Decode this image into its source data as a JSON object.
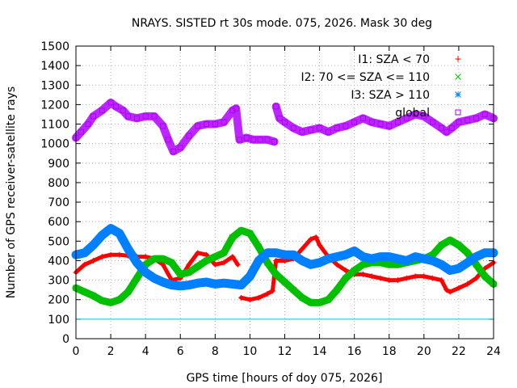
{
  "chart_data": {
    "type": "scatter",
    "title": "NRAYS. SISTED rt 30s mode. 075, 2026. Mask 30 deg",
    "xlabel": "GPS time [hours of doy 075, 2026]",
    "ylabel": "Number of GPS receiver-satellite rays",
    "xlim": [
      0,
      24
    ],
    "ylim": [
      0,
      1500
    ],
    "x_ticks": [
      0,
      2,
      4,
      6,
      8,
      10,
      12,
      14,
      16,
      18,
      20,
      22,
      24
    ],
    "y_ticks": [
      0,
      100,
      200,
      300,
      400,
      500,
      600,
      700,
      800,
      900,
      1000,
      1100,
      1200,
      1300,
      1400,
      1500
    ],
    "grid": true,
    "legend_position": "top-right",
    "threshold_line": {
      "y": 100,
      "color": "#00c0e0"
    },
    "series": [
      {
        "name": "I1: SZA < 70",
        "marker": "+",
        "color": "#ff0000",
        "x": [
          0,
          0.5,
          1,
          1.5,
          2,
          2.5,
          3,
          3.5,
          4,
          4.5,
          5,
          5.5,
          6,
          6.5,
          7,
          7.5,
          8,
          8.5,
          9,
          9.3,
          9.5,
          10,
          10.5,
          11,
          11.3,
          11.5,
          12,
          12.5,
          13,
          13.5,
          13.8,
          14,
          14.5,
          15,
          15.5,
          16,
          16.5,
          17,
          17.5,
          18,
          18.5,
          19,
          19.5,
          20,
          20.5,
          21,
          21.3,
          21.5,
          22,
          22.5,
          23,
          23.5,
          24
        ],
        "y": [
          340,
          380,
          400,
          420,
          430,
          430,
          425,
          420,
          420,
          410,
          380,
          300,
          310,
          380,
          440,
          430,
          380,
          390,
          420,
          380,
          210,
          200,
          210,
          230,
          245,
          400,
          400,
          410,
          460,
          510,
          520,
          480,
          420,
          380,
          350,
          330,
          330,
          320,
          310,
          300,
          300,
          310,
          320,
          320,
          310,
          300,
          250,
          240,
          260,
          280,
          310,
          360,
          390
        ]
      },
      {
        "name": "I2: 70 <= SZA <= 110",
        "marker": "x",
        "color": "#00c000",
        "x": [
          0,
          0.5,
          1,
          1.5,
          2,
          2.5,
          3,
          3.5,
          4,
          4.5,
          5,
          5.5,
          6,
          6.5,
          7,
          7.5,
          8,
          8.5,
          9,
          9.5,
          10,
          10.5,
          11,
          11.5,
          12,
          12.5,
          13,
          13.5,
          14,
          14.5,
          15,
          15.5,
          16,
          16.5,
          17,
          17.5,
          18,
          18.5,
          19,
          19.5,
          20,
          20.5,
          21,
          21.5,
          22,
          22.5,
          23,
          23.5,
          24
        ],
        "y": [
          260,
          240,
          220,
          195,
          185,
          200,
          240,
          310,
          380,
          410,
          410,
          390,
          330,
          340,
          370,
          400,
          420,
          440,
          520,
          555,
          540,
          470,
          390,
          330,
          290,
          250,
          210,
          185,
          185,
          200,
          250,
          310,
          350,
          380,
          390,
          390,
          380,
          380,
          390,
          400,
          410,
          430,
          480,
          505,
          480,
          440,
          380,
          320,
          280
        ]
      },
      {
        "name": "I3: SZA > 110",
        "marker": "*",
        "color": "#0080ff",
        "x": [
          0,
          0.5,
          1,
          1.5,
          2,
          2.5,
          3,
          3.5,
          4,
          4.5,
          5,
          5.5,
          6,
          6.5,
          7,
          7.5,
          8,
          8.5,
          9,
          9.5,
          10,
          10.5,
          11,
          11.5,
          12,
          12.5,
          13,
          13.5,
          14,
          14.5,
          15,
          15.5,
          16,
          16.5,
          17,
          17.5,
          18,
          18.5,
          19,
          19.5,
          20,
          20.5,
          21,
          21.5,
          22,
          22.5,
          23,
          23.5,
          24
        ],
        "y": [
          430,
          440,
          480,
          530,
          565,
          540,
          460,
          390,
          340,
          310,
          290,
          275,
          270,
          275,
          285,
          290,
          280,
          285,
          280,
          275,
          320,
          400,
          440,
          440,
          430,
          430,
          400,
          380,
          390,
          410,
          420,
          430,
          450,
          420,
          410,
          420,
          420,
          410,
          400,
          420,
          410,
          400,
          380,
          350,
          360,
          390,
          420,
          440,
          440
        ]
      },
      {
        "name": "global",
        "marker": "square",
        "color": "#b000ff",
        "x": [
          0,
          0.3,
          0.7,
          1,
          1.5,
          2,
          2.3,
          2.7,
          3,
          3.5,
          4,
          4.5,
          5,
          5.3,
          5.6,
          6,
          6.5,
          7,
          7.5,
          8,
          8.5,
          9,
          9.2,
          9.4,
          9.8,
          10.2,
          10.6,
          11,
          11.4,
          11.5,
          11.7,
          12,
          12.5,
          13,
          13.5,
          14,
          14.5,
          15,
          15.5,
          16,
          16.5,
          17,
          17.5,
          18,
          18.5,
          19,
          19.5,
          20,
          20.5,
          21,
          21.3,
          21.6,
          22,
          22.5,
          23,
          23.5,
          24
        ],
        "y": [
          1030,
          1060,
          1100,
          1140,
          1170,
          1210,
          1190,
          1170,
          1140,
          1130,
          1140,
          1140,
          1090,
          1020,
          960,
          980,
          1040,
          1090,
          1100,
          1100,
          1110,
          1170,
          1180,
          1020,
          1030,
          1020,
          1020,
          1020,
          1010,
          1190,
          1130,
          1110,
          1080,
          1060,
          1070,
          1080,
          1060,
          1080,
          1090,
          1110,
          1130,
          1110,
          1100,
          1090,
          1110,
          1130,
          1150,
          1140,
          1110,
          1080,
          1060,
          1080,
          1110,
          1120,
          1130,
          1150,
          1130
        ]
      }
    ]
  }
}
